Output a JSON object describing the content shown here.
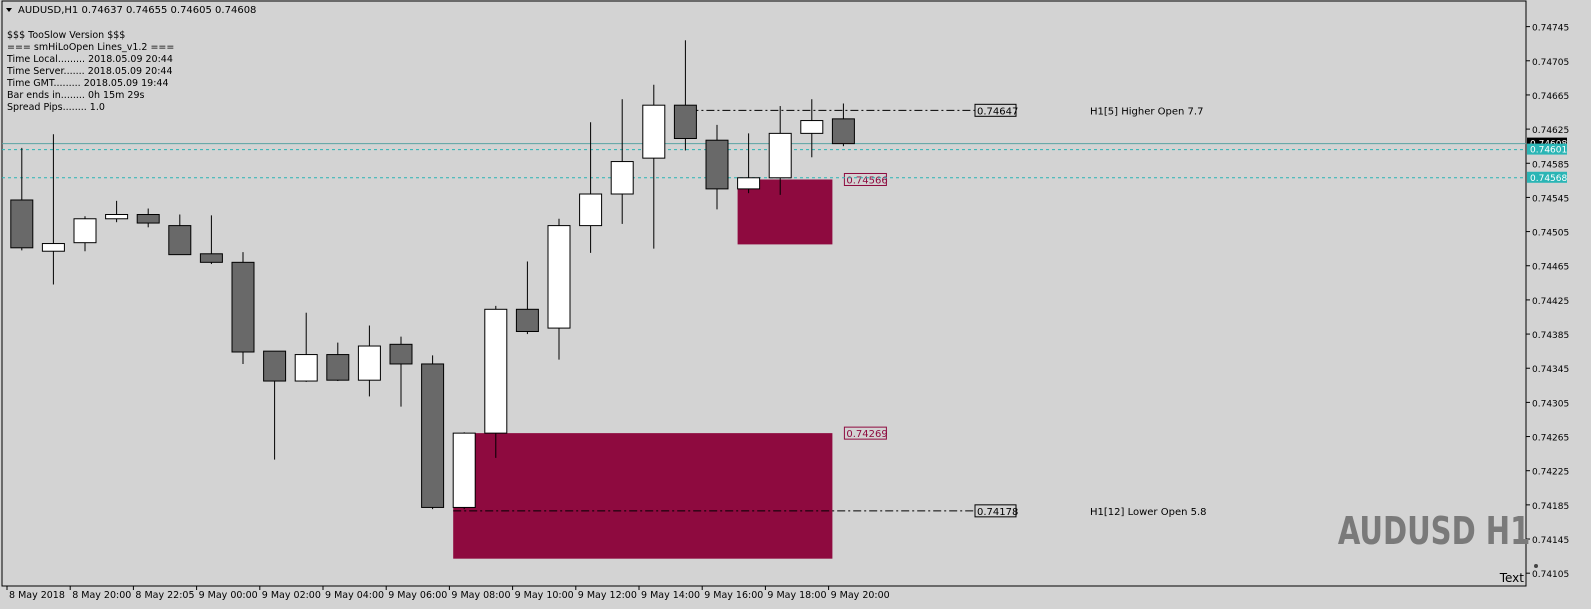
{
  "header": {
    "symbol_line": "AUDUSD,H1  0.74637 0.74655 0.74605 0.74608"
  },
  "info_lines": [
    "$$$ TooSlow Version $$$",
    "=== smHiLoOpen Lines_v1.2 ===",
    "Time Local......... 2018.05.09 20:44",
    "Time Server....... 2018.05.09 20:44",
    "Time GMT......... 2018.05.09 19:44",
    "Bar ends in........ 0h 15m 29s",
    "Spread Pips........ 1.0"
  ],
  "watermark": "AUDUSD H1",
  "text_object_label": "Text",
  "colors": {
    "background": "#d3d3d3",
    "bull_body": "#ffffff",
    "bear_body": "#696969",
    "zone": "#8e0a3f",
    "current_price": "#2ab5b5",
    "current_line": "#5aa3a3",
    "axis_text": "#000000"
  },
  "chart_data": {
    "type": "candlestick",
    "symbol": "AUDUSD",
    "timeframe": "H1",
    "ylim": [
      0.7409,
      0.74775
    ],
    "y_ticks": [
      "0.74745",
      "0.74705",
      "0.74665",
      "0.74625",
      "0.74585",
      "0.74545",
      "0.74505",
      "0.74465",
      "0.74425",
      "0.74385",
      "0.74345",
      "0.74305",
      "0.74265",
      "0.74225",
      "0.74185",
      "0.74145",
      "0.74105"
    ],
    "x_tick_labels": [
      {
        "bar": -0.5,
        "label": "8 May 2018"
      },
      {
        "bar": 1.5,
        "label": "8 May 20:00"
      },
      {
        "bar": 3.5,
        "label": "8 May 22:05"
      },
      {
        "bar": 5.5,
        "label": "9 May 00:00"
      },
      {
        "bar": 7.5,
        "label": "9 May 02:00"
      },
      {
        "bar": 9.5,
        "label": "9 May 04:00"
      },
      {
        "bar": 11.5,
        "label": "9 May 06:00"
      },
      {
        "bar": 13.5,
        "label": "9 May 08:00"
      },
      {
        "bar": 15.5,
        "label": "9 May 10:00"
      },
      {
        "bar": 17.5,
        "label": "9 May 12:00"
      },
      {
        "bar": 19.5,
        "label": "9 May 14:00"
      },
      {
        "bar": 21.5,
        "label": "9 May 16:00"
      },
      {
        "bar": 23.5,
        "label": "9 May 18:00"
      },
      {
        "bar": 25.5,
        "label": "9 May 20:00"
      }
    ],
    "candles": [
      {
        "o": 0.74542,
        "h": 0.74603,
        "l": 0.74483,
        "c": 0.74486
      },
      {
        "o": 0.74482,
        "h": 0.74619,
        "l": 0.74443,
        "c": 0.74491
      },
      {
        "o": 0.74492,
        "h": 0.74523,
        "l": 0.74482,
        "c": 0.7452
      },
      {
        "o": 0.7452,
        "h": 0.74541,
        "l": 0.74516,
        "c": 0.74525
      },
      {
        "o": 0.74525,
        "h": 0.74532,
        "l": 0.7451,
        "c": 0.74515
      },
      {
        "o": 0.74512,
        "h": 0.74525,
        "l": 0.74478,
        "c": 0.74478
      },
      {
        "o": 0.74479,
        "h": 0.74524,
        "l": 0.74467,
        "c": 0.74469
      },
      {
        "o": 0.74469,
        "h": 0.74481,
        "l": 0.7435,
        "c": 0.74364
      },
      {
        "o": 0.74365,
        "h": 0.74363,
        "l": 0.74238,
        "c": 0.7433
      },
      {
        "o": 0.7433,
        "h": 0.7441,
        "l": 0.74329,
        "c": 0.74361
      },
      {
        "o": 0.74361,
        "h": 0.74375,
        "l": 0.7433,
        "c": 0.74331
      },
      {
        "o": 0.74331,
        "h": 0.74395,
        "l": 0.74312,
        "c": 0.74371
      },
      {
        "o": 0.74373,
        "h": 0.74382,
        "l": 0.743,
        "c": 0.7435
      },
      {
        "o": 0.7435,
        "h": 0.7436,
        "l": 0.7418,
        "c": 0.74182
      },
      {
        "o": 0.74182,
        "h": 0.7427,
        "l": 0.7418,
        "c": 0.74269
      },
      {
        "o": 0.74269,
        "h": 0.74418,
        "l": 0.7424,
        "c": 0.74414
      },
      {
        "o": 0.74414,
        "h": 0.7447,
        "l": 0.74385,
        "c": 0.74388
      },
      {
        "o": 0.74392,
        "h": 0.7452,
        "l": 0.74355,
        "c": 0.74512
      },
      {
        "o": 0.74512,
        "h": 0.74633,
        "l": 0.7448,
        "c": 0.74549
      },
      {
        "o": 0.74549,
        "h": 0.7466,
        "l": 0.74514,
        "c": 0.74587
      },
      {
        "o": 0.74591,
        "h": 0.74677,
        "l": 0.74485,
        "c": 0.74653
      },
      {
        "o": 0.74653,
        "h": 0.74729,
        "l": 0.746,
        "c": 0.74614
      },
      {
        "o": 0.74612,
        "h": 0.7463,
        "l": 0.74531,
        "c": 0.74555
      },
      {
        "o": 0.74555,
        "h": 0.7462,
        "l": 0.7455,
        "c": 0.74568
      },
      {
        "o": 0.74568,
        "h": 0.74652,
        "l": 0.74548,
        "c": 0.7462
      },
      {
        "o": 0.7462,
        "h": 0.7466,
        "l": 0.74592,
        "c": 0.74635
      },
      {
        "o": 0.74637,
        "h": 0.74655,
        "l": 0.74605,
        "c": 0.74608
      }
    ],
    "zones": [
      {
        "from_bar": 23,
        "to_bar": 26,
        "top": 0.74566,
        "bottom": 0.7449
      },
      {
        "from_bar": 14,
        "to_bar": 26,
        "top": 0.74269,
        "bottom": 0.74122
      }
    ],
    "h_lines": [
      {
        "price": 0.74647,
        "from_bar": 21,
        "label": "0.74647",
        "note": "H1[5] Higher Open 7.7"
      },
      {
        "price": 0.74178,
        "from_bar": 14,
        "label": "0.74178",
        "note": "H1[12] Lower Open 5.8"
      }
    ],
    "zone_price_labels": [
      "0.74566",
      "0.74269"
    ],
    "current_price_tags": [
      {
        "price": 0.74608,
        "label": "0.74608",
        "style": "dark"
      },
      {
        "price": 0.74601,
        "label": "0.74601",
        "style": "teal"
      },
      {
        "price": 0.74568,
        "label": "0.74568",
        "style": "teal"
      }
    ]
  }
}
